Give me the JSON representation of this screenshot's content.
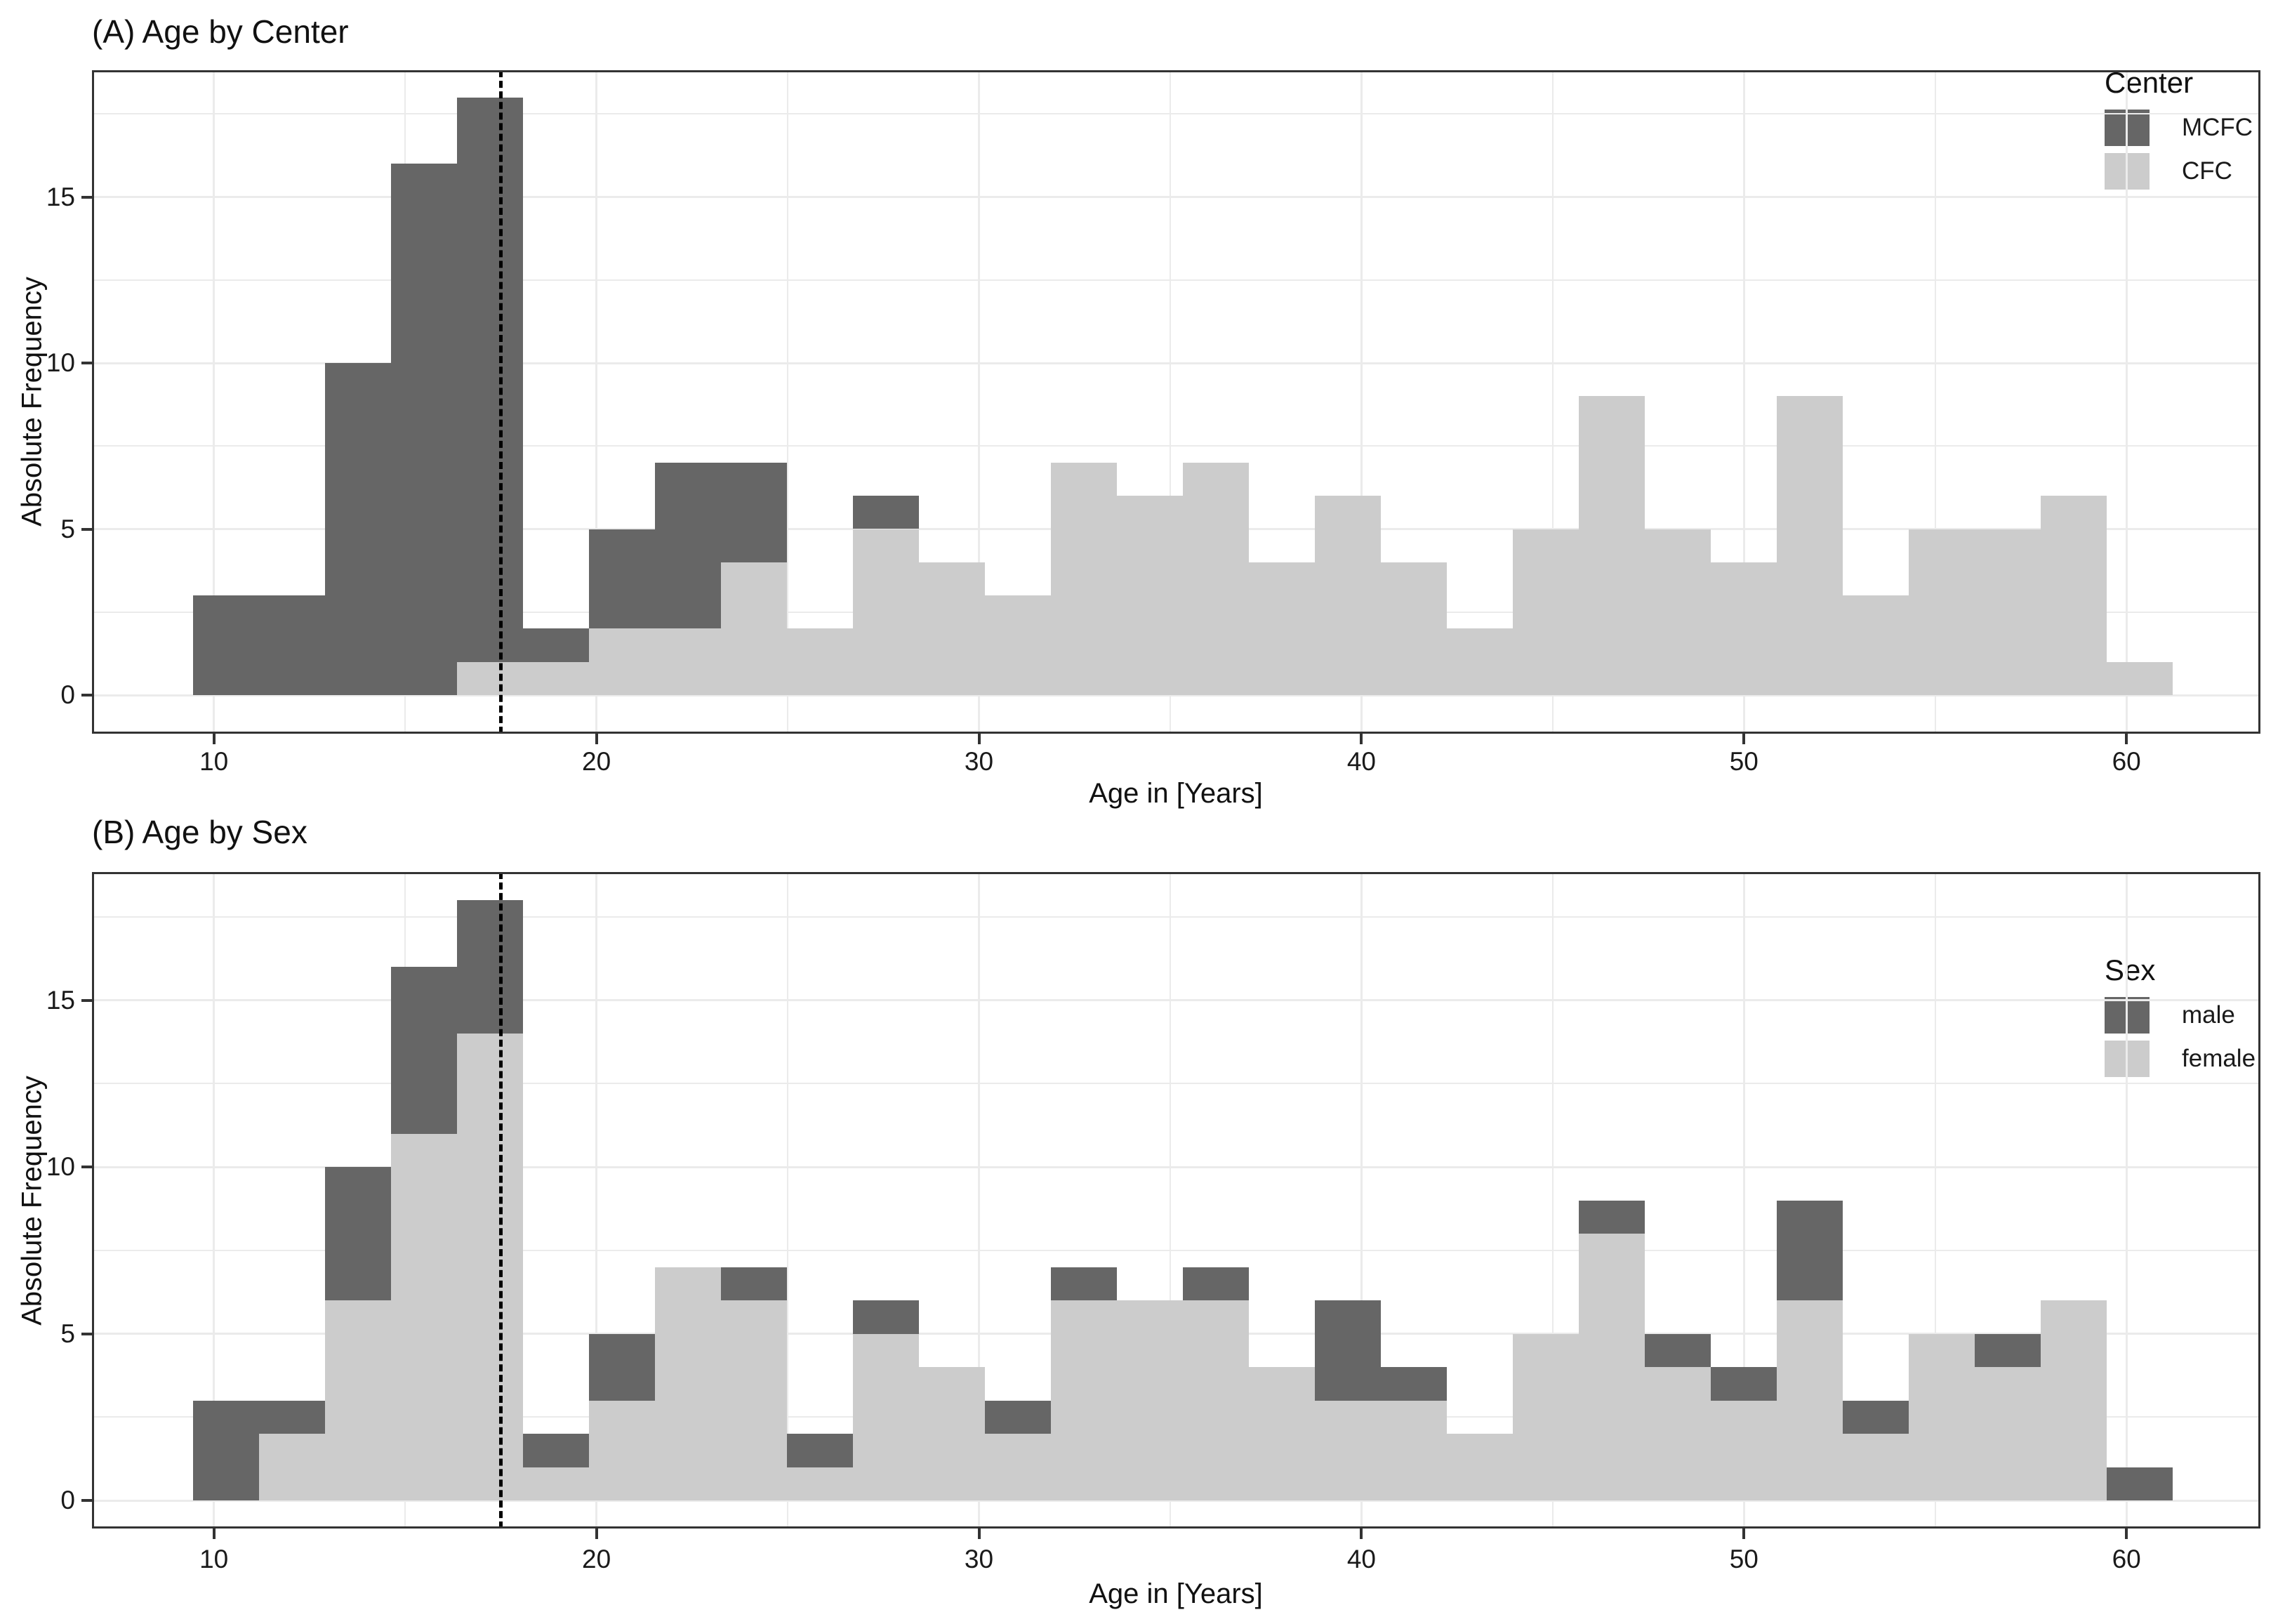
{
  "figure": {
    "x_axis_label": "Age in [Years]",
    "y_axis_label": "Absolute Frequency"
  },
  "colors": {
    "dark": "#666666",
    "light": "#cccccc",
    "gridline": "#ebebeb",
    "axis": "#333333",
    "dashed_line": "#000000"
  },
  "chart_data": [
    {
      "type": "bar",
      "subtype": "stacked-histogram",
      "title": "(A) Age by Center",
      "xlabel": "Age in [Years]",
      "ylabel": "Absolute Frequency",
      "bins": {
        "start": 9.45,
        "width": 1.725,
        "count": 30
      },
      "xlim": [
        6.8,
        63.8
      ],
      "ylim": [
        0,
        18.9
      ],
      "grid": true,
      "legend_position": "top-right",
      "dashed_line_x": 17.5,
      "series": [
        {
          "name": "CFC",
          "role": "bottom",
          "color": "#cccccc",
          "values": [
            0,
            0,
            0,
            0,
            1,
            1,
            2,
            2,
            4,
            2,
            5,
            4,
            3,
            7,
            6,
            7,
            4,
            6,
            4,
            2,
            5,
            9,
            5,
            4,
            9,
            3,
            5,
            5,
            6,
            1
          ]
        },
        {
          "name": "MCFC",
          "role": "top",
          "color": "#666666",
          "values": [
            3,
            3,
            10,
            16,
            17,
            1,
            3,
            5,
            3,
            0,
            1,
            0,
            0,
            0,
            0,
            0,
            0,
            0,
            0,
            0,
            0,
            0,
            0,
            0,
            0,
            0,
            0,
            0,
            0,
            0
          ]
        }
      ],
      "totals": [
        3,
        3,
        10,
        16,
        18,
        2,
        5,
        7,
        7,
        2,
        6,
        4,
        3,
        7,
        6,
        7,
        4,
        6,
        4,
        2,
        5,
        9,
        5,
        4,
        9,
        3,
        5,
        5,
        6,
        1
      ],
      "legend": {
        "title": "Center",
        "items": [
          {
            "label": "MCFC",
            "color": "#666666"
          },
          {
            "label": "CFC",
            "color": "#cccccc"
          }
        ]
      },
      "x_axis": {
        "tick_labels": [
          "10",
          "20",
          "30",
          "40",
          "50",
          "60"
        ],
        "tick_values": [
          10,
          20,
          30,
          40,
          50,
          60
        ],
        "minor_tick_values": [
          15,
          25,
          35,
          45,
          55
        ]
      },
      "y_axis": {
        "tick_labels": [
          "0",
          "5",
          "10",
          "15"
        ],
        "tick_values": [
          0,
          5,
          10,
          15
        ],
        "minor_tick_values": [
          2.5,
          7.5,
          12.5,
          17.5
        ]
      }
    },
    {
      "type": "bar",
      "subtype": "stacked-histogram",
      "title": "(B) Age by Sex",
      "xlabel": "Age in [Years]",
      "ylabel": "Absolute Frequency",
      "bins": {
        "start": 9.45,
        "width": 1.725,
        "count": 30
      },
      "xlim": [
        6.8,
        63.8
      ],
      "ylim": [
        0,
        18.9
      ],
      "grid": true,
      "legend_position": "top-right",
      "dashed_line_x": 17.5,
      "series": [
        {
          "name": "female",
          "role": "bottom",
          "color": "#cccccc",
          "values": [
            0,
            2,
            6,
            11,
            14,
            1,
            3,
            7,
            6,
            1,
            5,
            4,
            2,
            6,
            6,
            6,
            4,
            3,
            3,
            2,
            5,
            8,
            4,
            3,
            6,
            2,
            5,
            4,
            6,
            0
          ]
        },
        {
          "name": "male",
          "role": "top",
          "color": "#666666",
          "values": [
            3,
            1,
            4,
            5,
            4,
            1,
            2,
            0,
            1,
            1,
            1,
            0,
            1,
            1,
            0,
            1,
            0,
            3,
            1,
            0,
            0,
            1,
            1,
            1,
            3,
            1,
            0,
            1,
            0,
            1
          ]
        }
      ],
      "totals": [
        3,
        3,
        10,
        16,
        18,
        2,
        5,
        7,
        7,
        2,
        6,
        4,
        3,
        7,
        6,
        7,
        4,
        6,
        4,
        2,
        5,
        9,
        5,
        4,
        9,
        3,
        5,
        5,
        6,
        1
      ],
      "legend": {
        "title": "Sex",
        "items": [
          {
            "label": "male",
            "color": "#666666"
          },
          {
            "label": "female",
            "color": "#cccccc"
          }
        ]
      },
      "x_axis": {
        "tick_labels": [
          "10",
          "20",
          "30",
          "40",
          "50",
          "60"
        ],
        "tick_values": [
          10,
          20,
          30,
          40,
          50,
          60
        ],
        "minor_tick_values": [
          15,
          25,
          35,
          45,
          55
        ]
      },
      "y_axis": {
        "tick_labels": [
          "0",
          "5",
          "10",
          "15"
        ],
        "tick_values": [
          0,
          5,
          10,
          15
        ],
        "minor_tick_values": [
          2.5,
          7.5,
          12.5,
          17.5
        ]
      }
    }
  ]
}
